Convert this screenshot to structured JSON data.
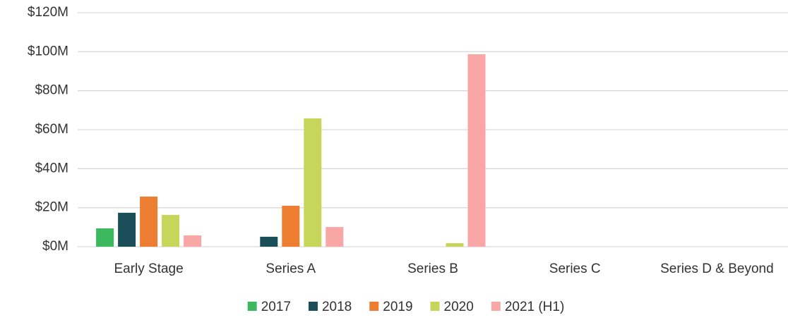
{
  "chart_data": {
    "type": "bar",
    "categories": [
      "Early Stage",
      "Series A",
      "Series B",
      "Series C",
      "Series D & Beyond"
    ],
    "series": [
      {
        "name": "2017",
        "color": "#3cb95f",
        "values": [
          9.4,
          0,
          0,
          0,
          0
        ]
      },
      {
        "name": "2018",
        "color": "#1a4f5a",
        "values": [
          17.4,
          5.1,
          0,
          0,
          0
        ]
      },
      {
        "name": "2019",
        "color": "#ed7d31",
        "values": [
          25.7,
          21,
          0,
          0,
          0
        ]
      },
      {
        "name": "2020",
        "color": "#c5d65a",
        "values": [
          16.3,
          65.8,
          1.8,
          0,
          0
        ]
      },
      {
        "name": "2021 (H1)",
        "color": "#f9a6a6",
        "values": [
          5.8,
          10.1,
          98.7,
          0,
          0
        ]
      }
    ],
    "ylim": [
      0,
      120
    ],
    "yticks": [
      {
        "value": 0,
        "label": "$0M"
      },
      {
        "value": 20,
        "label": "$20M"
      },
      {
        "value": 40,
        "label": "$40M"
      },
      {
        "value": 60,
        "label": "$60M"
      },
      {
        "value": 80,
        "label": "$80M"
      },
      {
        "value": 100,
        "label": "$100M"
      },
      {
        "value": 120,
        "label": "$120M"
      }
    ],
    "grid": true,
    "legend": "bottom"
  }
}
